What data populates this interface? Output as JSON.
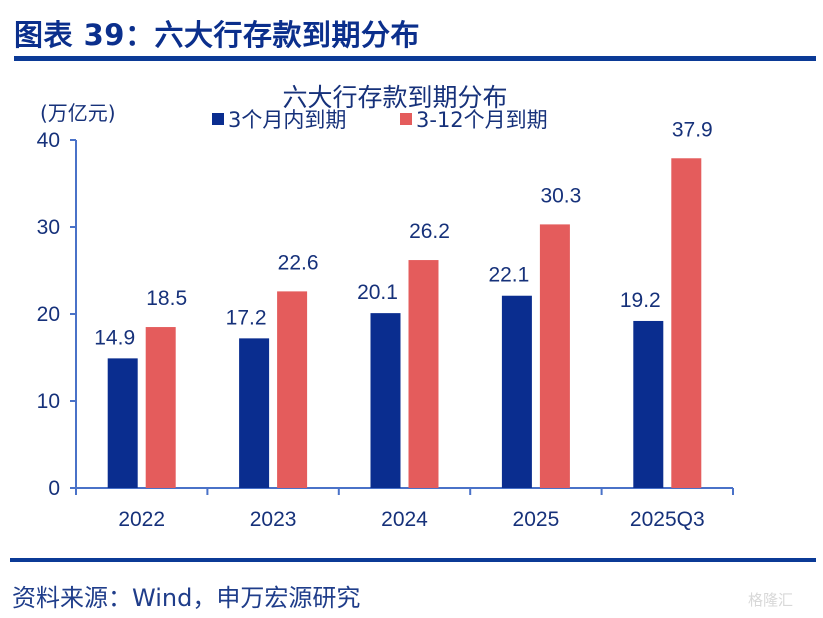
{
  "header": {
    "figure_title": "图表 39：六大行存款到期分布"
  },
  "footer": {
    "source": "资料来源：Wind，申万宏源研究",
    "watermark": "格隆汇"
  },
  "colors": {
    "series1": "#0a2d8f",
    "series2": "#e45c5c",
    "axis": "#4a72c8",
    "text": "#16317a",
    "rule": "#0b3a96"
  },
  "chart_data": {
    "type": "bar",
    "title": "六大行存款到期分布",
    "ylabel": "(万亿元)",
    "xlabel": "",
    "categories": [
      "2022",
      "2023",
      "2024",
      "2025",
      "2025Q3"
    ],
    "series": [
      {
        "name": "3个月内到期",
        "values": [
          14.9,
          17.2,
          20.1,
          22.1,
          19.2
        ]
      },
      {
        "name": "3-12个月到期",
        "values": [
          18.5,
          22.6,
          26.2,
          30.3,
          37.9
        ]
      }
    ],
    "ylim": [
      0,
      40
    ],
    "yticks": [
      0,
      10,
      20,
      30,
      40
    ],
    "grid": false,
    "legend": "top-center",
    "data_labels": true
  }
}
